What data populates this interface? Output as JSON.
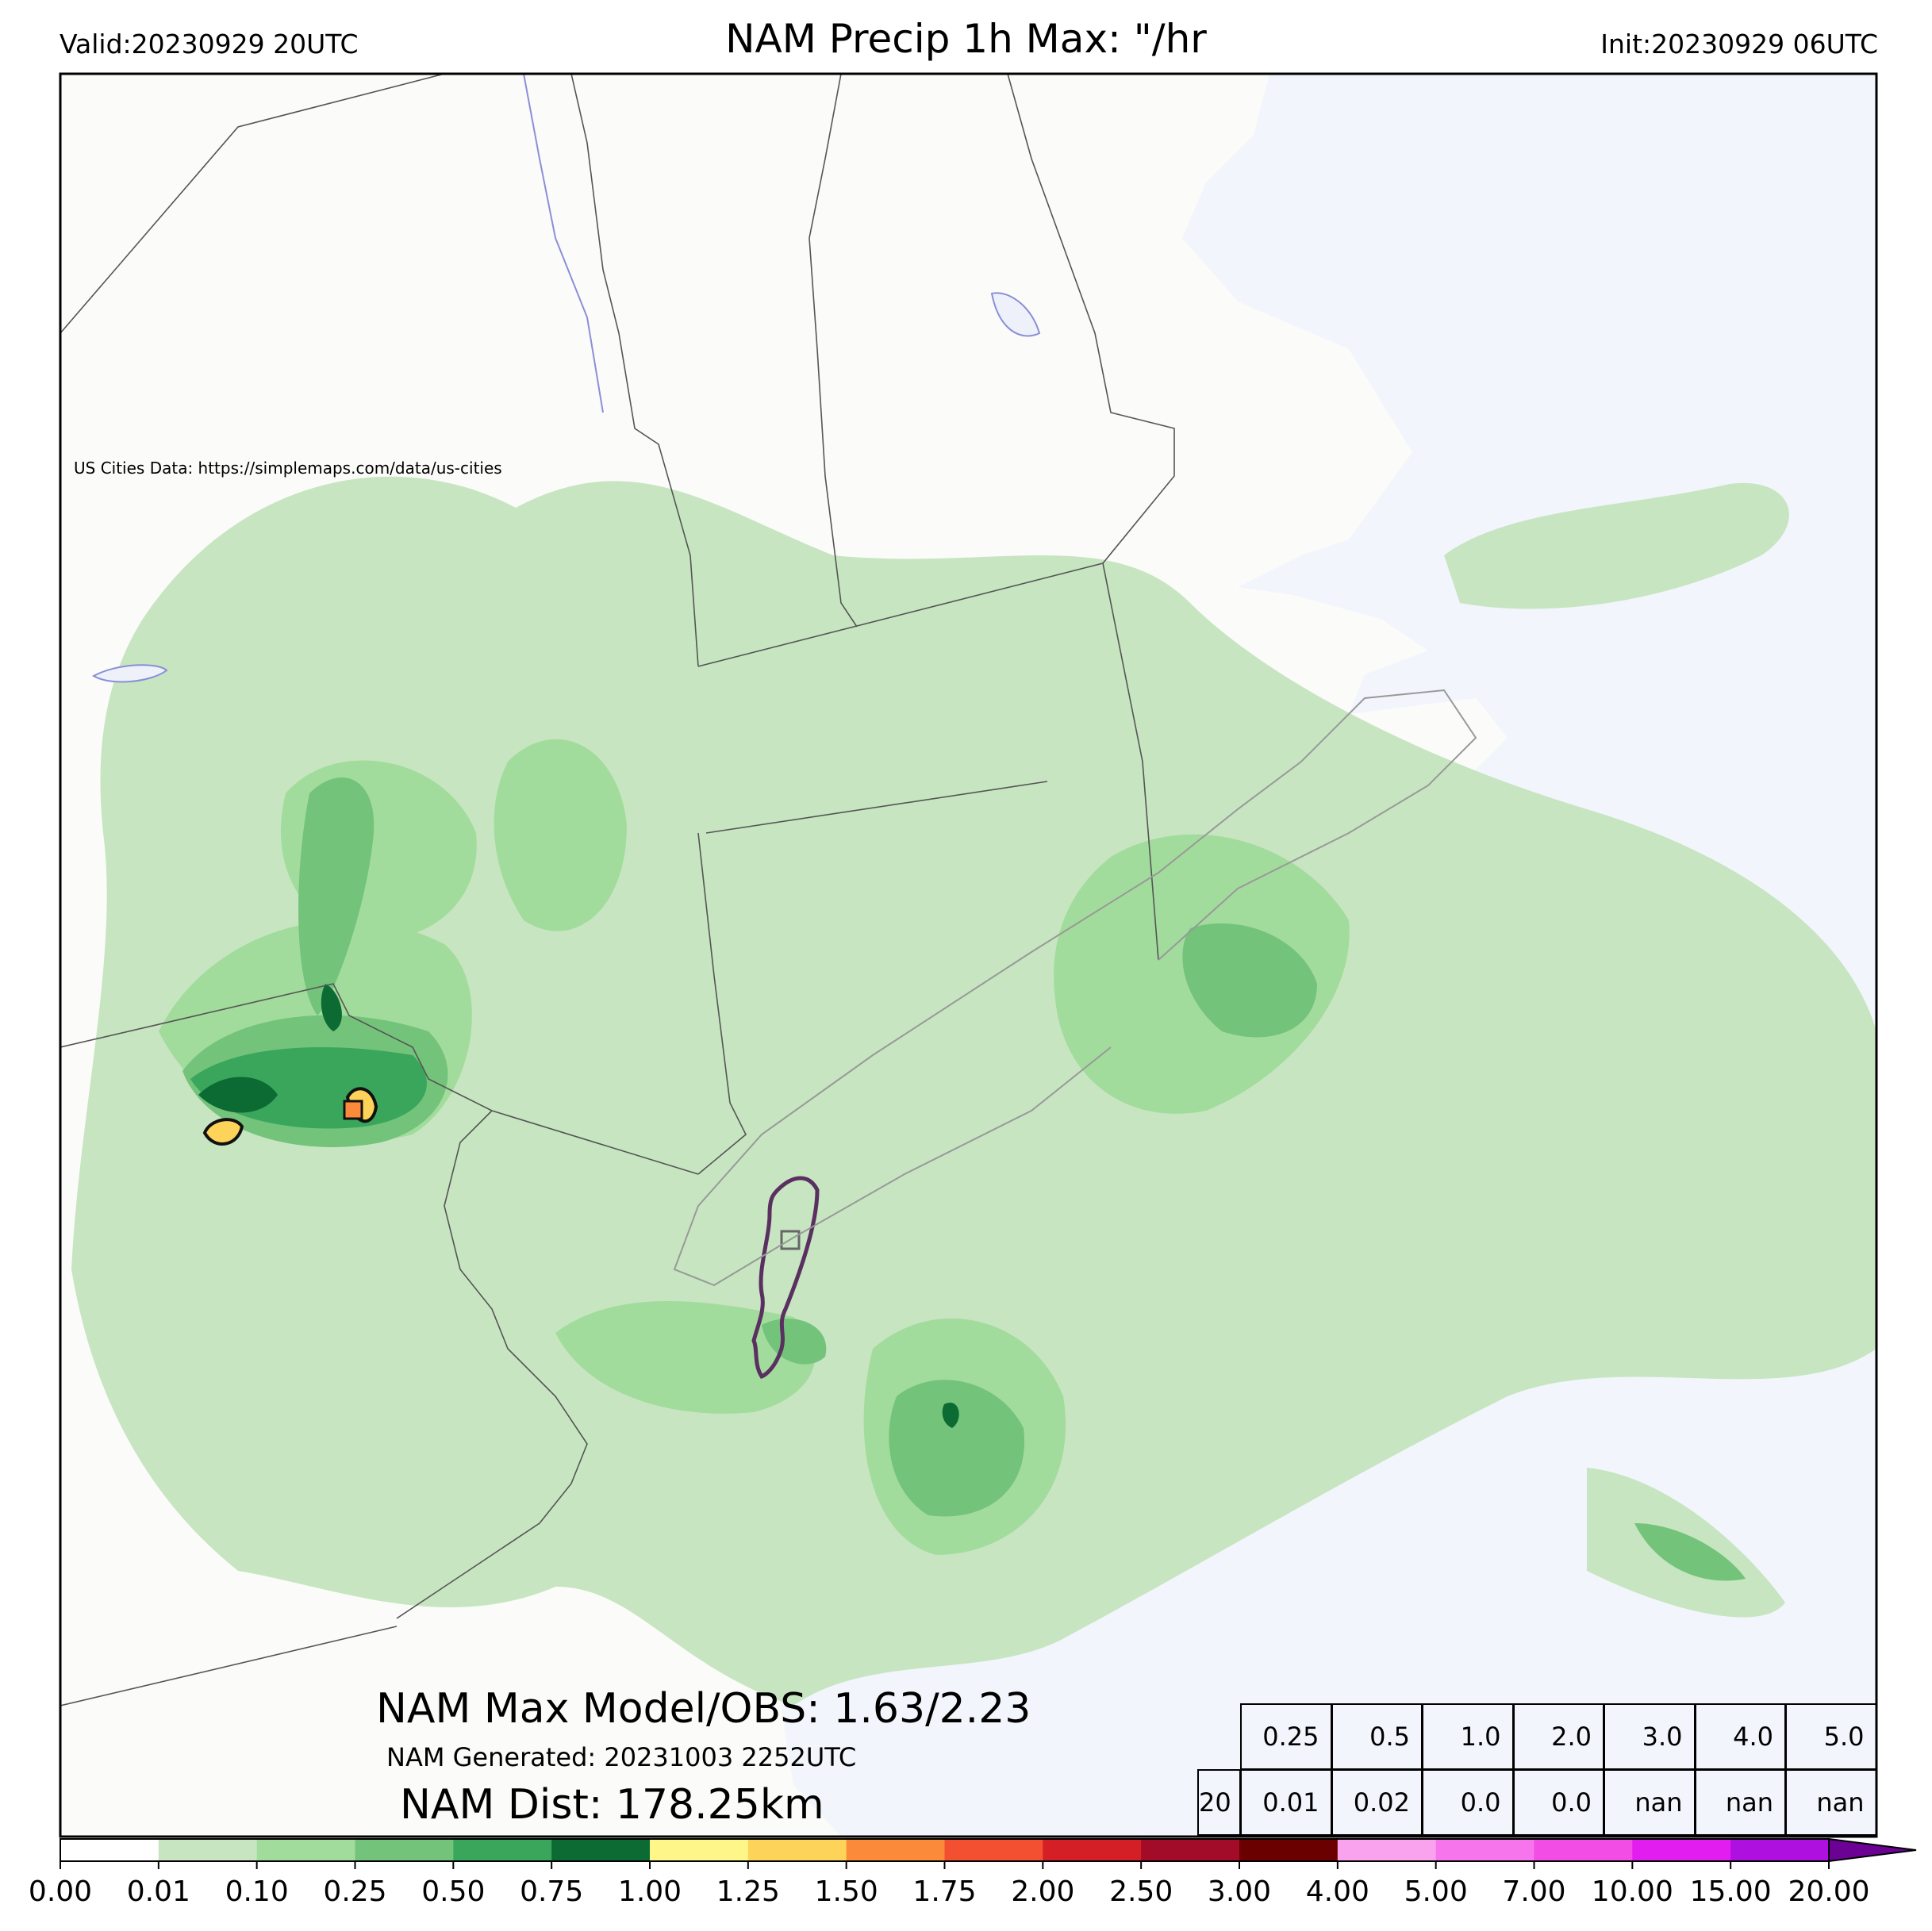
{
  "header": {
    "valid": "Valid:20230929 20UTC",
    "title": "NAM Precip 1h Max: \"/hr",
    "init": "Init:20230929 06UTC"
  },
  "map": {
    "credit": "US Cities Data: https://simplemaps.com/data/us-cities",
    "land_color": "#fbfbf9",
    "ocean_color": "#f2f5fb",
    "water_outline": "#8a8fd6",
    "border_color": "#555555"
  },
  "annotations": {
    "max_line": "NAM Max Model/OBS: 1.63/2.23",
    "generated_line": "NAM Generated: 20231003 2252UTC",
    "dist_line": "NAM Dist: 178.25km"
  },
  "stats_table": {
    "header": [
      "0.25",
      "0.5",
      "1.0",
      "2.0",
      "3.0",
      "4.0",
      "5.0"
    ],
    "row_label": "20",
    "row": [
      "0.01",
      "0.02",
      "0.0",
      "0.0",
      "nan",
      "nan",
      "nan"
    ]
  },
  "colorbar": {
    "ticks": [
      "0.00",
      "0.01",
      "0.10",
      "0.25",
      "0.50",
      "0.75",
      "1.00",
      "1.25",
      "1.50",
      "1.75",
      "2.00",
      "2.50",
      "3.00",
      "4.00",
      "5.00",
      "7.00",
      "10.00",
      "15.00",
      "20.00"
    ],
    "colors": [
      "#ffffff",
      "#c7e5c1",
      "#a2dc9c",
      "#74c37b",
      "#3aa65b",
      "#0c6b33",
      "#fff68a",
      "#fdd35a",
      "#fb8b3b",
      "#f25030",
      "#d41f26",
      "#a30c28",
      "#6b0000",
      "#f9a3ef",
      "#f674ec",
      "#f24de4",
      "#e21df0",
      "#ad10df",
      "#6c0195"
    ]
  },
  "chart_data": {
    "type": "heatmap",
    "title": "NAM Precip 1h Max: \"/hr",
    "levels": [
      0.0,
      0.01,
      0.1,
      0.25,
      0.5,
      0.75,
      1.0,
      1.25,
      1.5,
      1.75,
      2.0,
      2.5,
      3.0,
      4.0,
      5.0,
      7.0,
      10.0,
      15.0,
      20.0
    ],
    "max_model": 1.63,
    "max_obs": 2.23
  }
}
